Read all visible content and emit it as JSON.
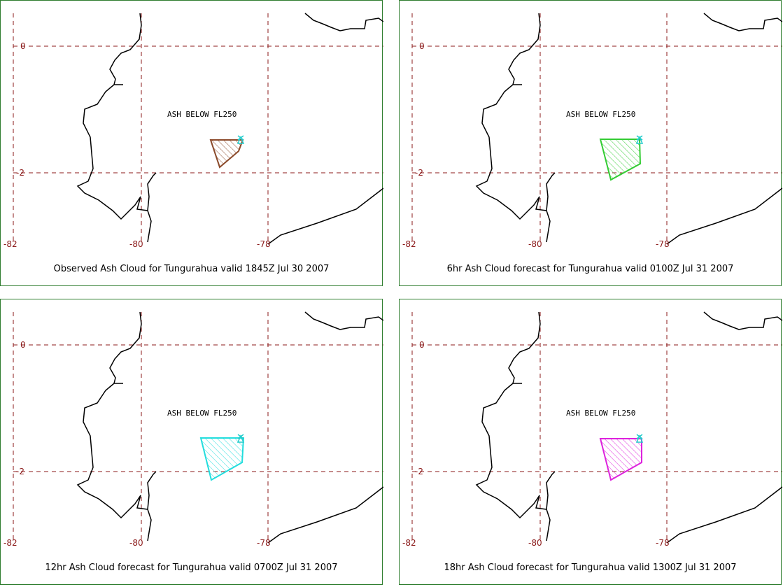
{
  "panels": [
    {
      "caption": "Observed Ash Cloud for Tungurahua valid 1845Z Jul 30 2007",
      "label": "ASH BELOW FL250",
      "color": "#8b4a2a"
    },
    {
      "caption": "6hr Ash Cloud forecast for Tungurahua valid 0100Z Jul 31 2007",
      "label": "ASH BELOW FL250",
      "color": "#33cc33"
    },
    {
      "caption": "12hr Ash Cloud forecast for Tungurahua valid 0700Z Jul 31 2007",
      "label": "ASH BELOW FL250",
      "color": "#22dddd"
    },
    {
      "caption": "18hr Ash Cloud forecast for Tungurahua valid 1300Z Jul 31 2007",
      "label": "ASH BELOW FL250",
      "color": "#dd22dd"
    }
  ],
  "grid": {
    "lat_labels": [
      "0",
      "-2"
    ],
    "lon_labels": [
      "-82",
      "-80",
      "-78"
    ],
    "color": "#8b1a1a"
  },
  "volcano_marker_color": "#22cccc",
  "coast_color": "#000000"
}
